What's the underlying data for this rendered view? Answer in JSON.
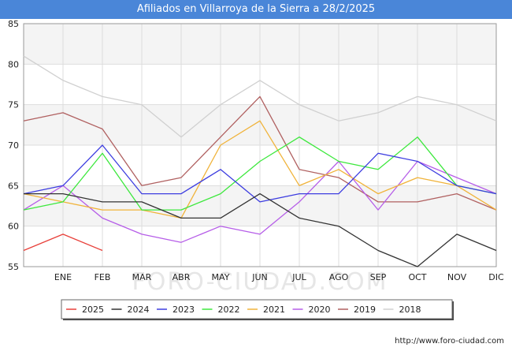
{
  "chart_data": {
    "type": "line",
    "title": "Afiliados en Villarroya de la Sierra a 28/2/2025",
    "categories": [
      "",
      "ENE",
      "FEB",
      "MAR",
      "ABR",
      "MAY",
      "JUN",
      "JUL",
      "AGO",
      "SEP",
      "OCT",
      "NOV",
      "DIC"
    ],
    "ylim": [
      55,
      85
    ],
    "yticks": [
      55,
      60,
      65,
      70,
      75,
      80,
      85
    ],
    "grid": true,
    "legend_position": "bottom",
    "series": [
      {
        "name": "2025",
        "color": "#e8403a",
        "values": [
          57,
          59,
          57,
          null,
          null,
          null,
          null,
          null,
          null,
          null,
          null,
          null,
          null
        ]
      },
      {
        "name": "2024",
        "color": "#333333",
        "values": [
          64,
          64,
          63,
          63,
          61,
          61,
          64,
          61,
          60,
          57,
          55,
          59,
          57
        ]
      },
      {
        "name": "2023",
        "color": "#3d3de0",
        "values": [
          64,
          65,
          70,
          64,
          64,
          67,
          63,
          64,
          64,
          69,
          68,
          65,
          64
        ]
      },
      {
        "name": "2022",
        "color": "#3de83d",
        "values": [
          62,
          63,
          69,
          62,
          62,
          64,
          68,
          71,
          68,
          67,
          71,
          65,
          64
        ]
      },
      {
        "name": "2021",
        "color": "#f0b33a",
        "values": [
          64,
          63,
          62,
          62,
          61,
          70,
          73,
          65,
          67,
          64,
          66,
          65,
          62
        ]
      },
      {
        "name": "2020",
        "color": "#b65ee8",
        "values": [
          62,
          65,
          61,
          59,
          58,
          60,
          59,
          63,
          68,
          62,
          68,
          66,
          64
        ]
      },
      {
        "name": "2019",
        "color": "#b06060",
        "values": [
          73,
          74,
          72,
          65,
          66,
          71,
          76,
          67,
          66,
          63,
          63,
          64,
          62
        ]
      },
      {
        "name": "2018",
        "color": "#d0d0d0",
        "values": [
          81,
          78,
          76,
          75,
          71,
          75,
          78,
          75,
          73,
          74,
          76,
          75,
          73
        ]
      }
    ]
  },
  "watermark": "FORO-CIUDAD.COM",
  "source": "http://www.foro-ciudad.com"
}
